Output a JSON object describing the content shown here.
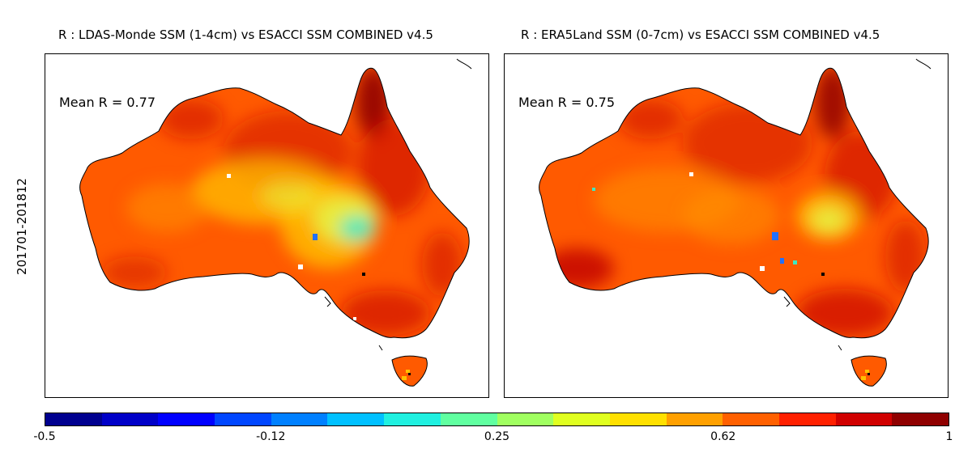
{
  "row_label": "201701-201812",
  "panels": [
    {
      "title": "R : LDAS-Monde SSM (1-4cm) vs ESACCI SSM COMBINED v4.5",
      "mean_label": "Mean R = 0.77",
      "mean_r": 0.77,
      "features": [
        "central-yellow-green-band",
        "cyan-patch-central-east",
        "small-blue-spots"
      ]
    },
    {
      "title": "R : ERA5Land SSM (0-7cm) vs ESACCI SSM COMBINED v4.5",
      "mean_label": "Mean R = 0.75",
      "mean_r": 0.75,
      "features": [
        "dark-red-south-west",
        "yellow-patch-central-east",
        "blue-spots-central"
      ]
    }
  ],
  "colorbar": {
    "min": -0.5,
    "max": 1,
    "tick_labels": [
      "-0.5",
      "-0.12",
      "0.25",
      "0.62",
      "1"
    ],
    "tick_values": [
      -0.5,
      -0.125,
      0.25,
      0.625,
      1
    ],
    "colors": [
      "#00008f",
      "#0000c8",
      "#0000ff",
      "#0046ff",
      "#0080ff",
      "#00c0ff",
      "#20f0e0",
      "#60ffa0",
      "#a0ff60",
      "#e0ff20",
      "#ffe000",
      "#ffa000",
      "#ff6000",
      "#ff2000",
      "#d00000",
      "#8f0000"
    ]
  },
  "colors": {
    "land_base": "#ff5a00",
    "land_dark": "#d01000",
    "land_darkest": "#900000",
    "land_yellow": "#ffc000",
    "land_lightyellow": "#e8f040",
    "land_cyan": "#40e8c0",
    "land_blue": "#2070ff",
    "coastline": "#000000"
  }
}
